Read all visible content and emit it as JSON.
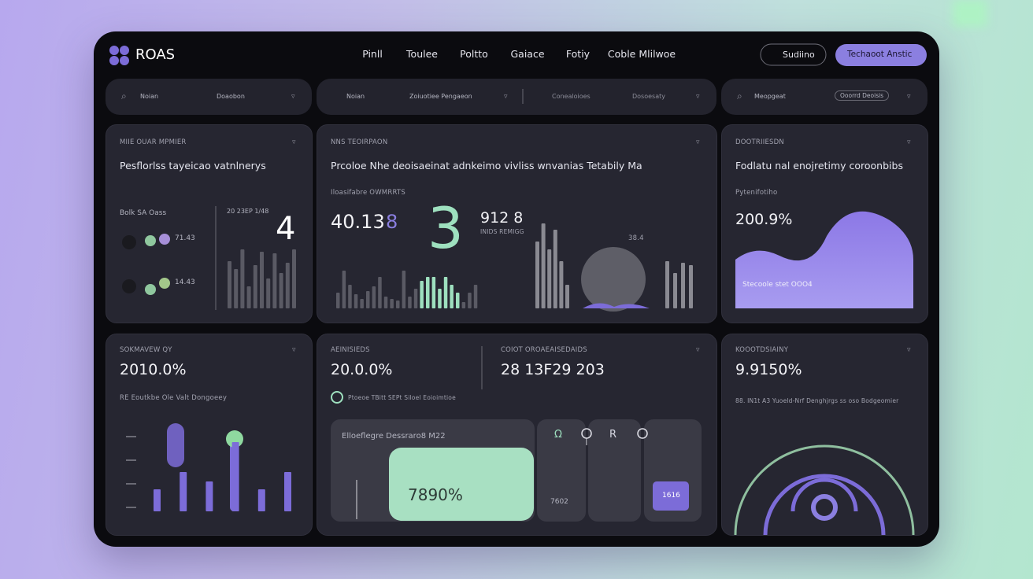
{
  "header": {
    "brand": "ROAS",
    "nav": [
      "Pinll",
      "Toulee",
      "Poltto",
      "Gaiace",
      "Fotiy",
      "Coble Mlilwoe"
    ],
    "buttons": [
      "Sudiino",
      "Techaoot Anstic"
    ]
  },
  "filters": [
    [
      "Noian",
      "Doaobon"
    ],
    [
      "Noian",
      "Zoiuotiee Pengaeon",
      "Conealoioes",
      "Dosoesaty"
    ],
    [
      "Meopgeat",
      "Ooorrd Deoisis"
    ]
  ],
  "cards": [
    {
      "label": "MIIE OUAR MPMIER",
      "title": "Pesflorlss tayeicao vatnlnerys",
      "sub": "Bolk SA Oass",
      "date": "20 23EP 1/48",
      "big": "4",
      "rows": [
        "71.43",
        "14.43"
      ],
      "bar_color": "#5a5a64",
      "bars": [
        60,
        50,
        75,
        28,
        55,
        72,
        38,
        70,
        45,
        58,
        75
      ]
    },
    {
      "label": "NNS TEOIRPAON",
      "title": "Prcoloe Nhe deoisaeinat adnkeimo vivliss wnvanias Tetabily Ma",
      "sub": "Iloasifabre OWMRRTS",
      "metric": "40.13",
      "metric_accent": "8",
      "big": "3",
      "side": "912 8",
      "side_label": "INIDS REMIGG",
      "note": "38.4",
      "bars": [
        20,
        48,
        30,
        18,
        12,
        22,
        28,
        40,
        15,
        12,
        10,
        48,
        15,
        25,
        35,
        40,
        40,
        25,
        40,
        30,
        20,
        8,
        20,
        30
      ],
      "bar_colors": [
        "#5a5a64",
        "#5a5a64",
        "#5a5a64",
        "#5a5a64",
        "#5a5a64",
        "#5a5a64",
        "#5a5a64",
        "#5a5a64",
        "#5a5a64",
        "#5a5a64",
        "#5a5a64",
        "#5a5a64",
        "#5a5a64",
        "#5a5a64",
        "#9ee0bf",
        "#9ee0bf",
        "#9ee0bf",
        "#9ee0bf",
        "#9ee0bf",
        "#9ee0bf",
        "#9ee0bf",
        "#5a5a64",
        "#5a5a64",
        "#5a5a64"
      ],
      "bars_right": [
        85,
        108,
        75,
        100,
        60,
        30
      ],
      "bars_right2": [
        60,
        45,
        58,
        55
      ],
      "bar_color": "#8a8a92"
    },
    {
      "label": "DOOTRIIESDN",
      "title": "Fodlatu nal enojretimy coroonbibs",
      "sub": "Pytenifotiho",
      "metric": "200.9%",
      "area_label": "Stecoole stet OOO4"
    },
    {
      "label": "SOKMAVEW QY",
      "metric": "2010.0%",
      "sub": "RE Eoutkbe Ole Valt Dongoeey",
      "bar_color": "#7c6cd8",
      "bars": [
        28,
        50,
        38,
        88,
        28,
        50
      ]
    },
    {
      "label": "AEINISIEDS",
      "metric": "20.0.0%",
      "label2": "COIOT OROAEAISEDAIDS",
      "metric2": "28 13F29 203",
      "sub": "Ptoeoe TBitt SEPt Siloel Eoioimtioe",
      "panel_title": "Elloeflegre Dessraro8 M22",
      "panel_value": "7890%",
      "tile_icons": [
        "Ω",
        "R"
      ],
      "tile_values": [
        "7602",
        "1616"
      ]
    },
    {
      "label": "KOOOTDSIAINY",
      "metric": "9.9150%",
      "sub": "88. IN1t A3 Yuoeld-Nrf Denghjrgs ss oso Bodgeomier"
    }
  ]
}
